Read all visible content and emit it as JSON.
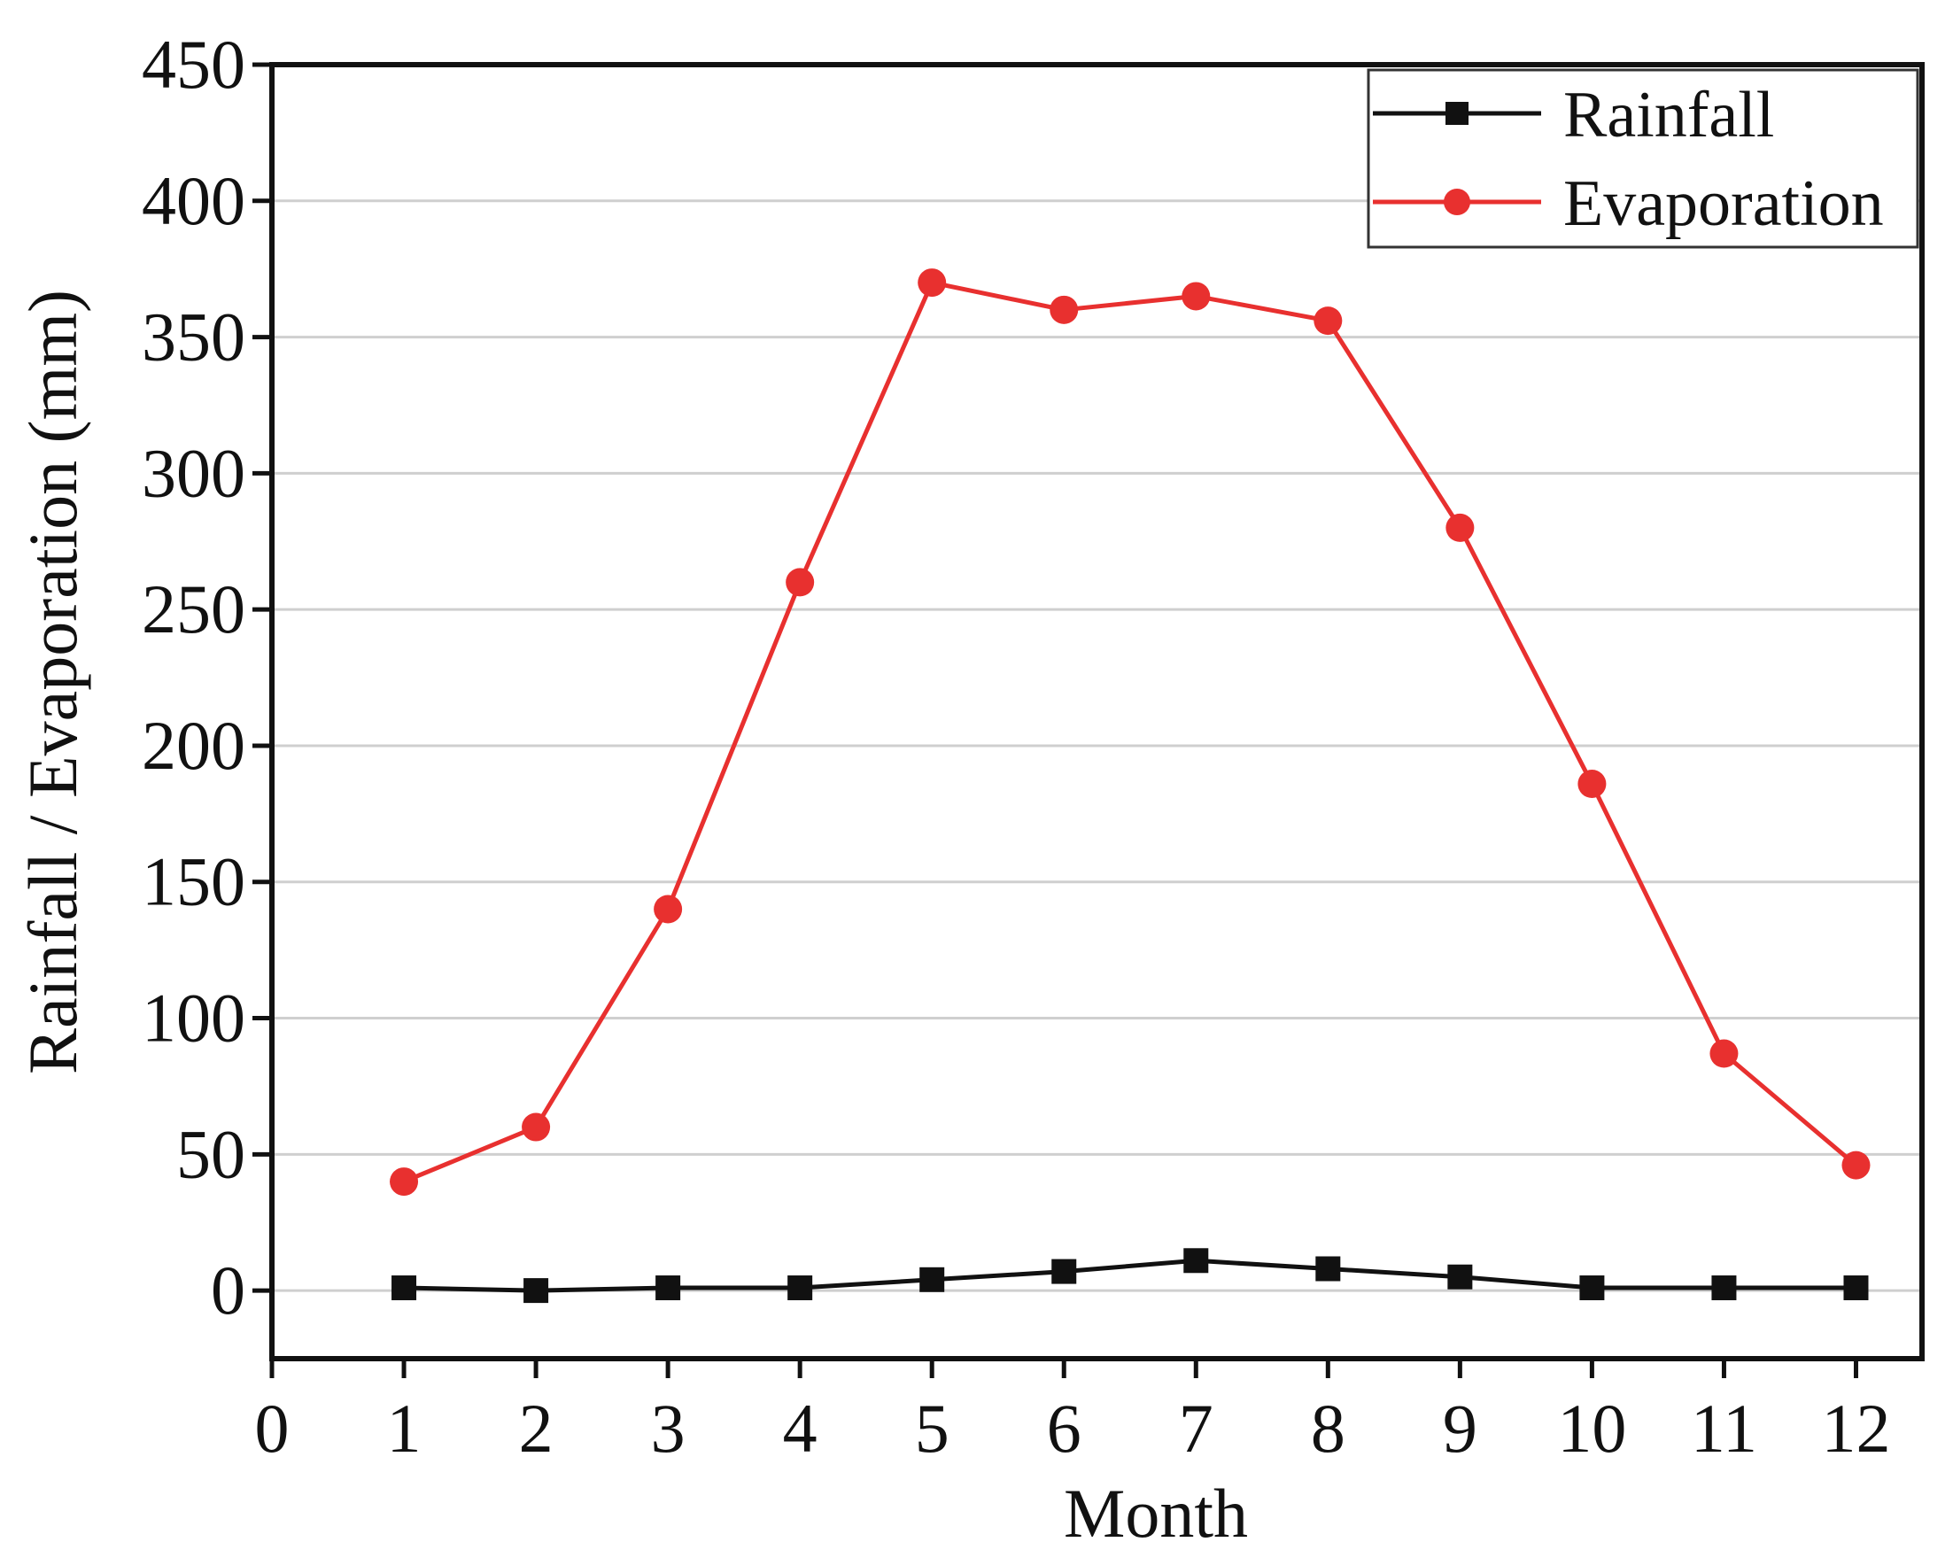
{
  "chart_data": {
    "type": "line",
    "title": "",
    "xlabel": "Month",
    "ylabel": "Rainfall / Evaporation (mm)",
    "xlim": [
      0,
      12.5
    ],
    "ylim": [
      -25,
      450
    ],
    "x_ticks": [
      0,
      1,
      2,
      3,
      4,
      5,
      6,
      7,
      8,
      9,
      10,
      11,
      12
    ],
    "y_ticks": [
      0,
      50,
      100,
      150,
      200,
      250,
      300,
      350,
      400,
      450
    ],
    "grid": "horizontal",
    "legend_position": "top-right",
    "x": [
      1,
      2,
      3,
      4,
      5,
      6,
      7,
      8,
      9,
      10,
      11,
      12
    ],
    "series": [
      {
        "name": "Rainfall",
        "color": "#111111",
        "marker": "square",
        "values": [
          1,
          0,
          1,
          1,
          4,
          7,
          11,
          8,
          5,
          1,
          1,
          1
        ]
      },
      {
        "name": "Evaporation",
        "color": "#e8302f",
        "marker": "circle",
        "values": [
          40,
          60,
          140,
          260,
          370,
          360,
          365,
          356,
          280,
          186,
          87,
          46
        ]
      }
    ]
  }
}
